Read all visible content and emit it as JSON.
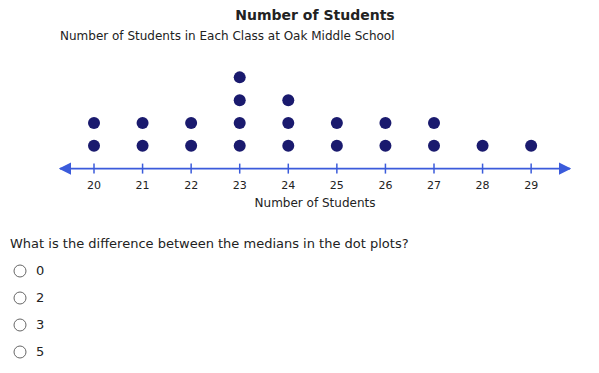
{
  "chart_data": {
    "type": "dot",
    "title": "Number of Students",
    "subtitle": "Number of Students in Each Class at Oak Middle School",
    "x_label": "Number of Students",
    "x": [
      20,
      21,
      22,
      23,
      24,
      25,
      26,
      27,
      28,
      29
    ],
    "values": [
      2,
      2,
      2,
      4,
      3,
      2,
      2,
      2,
      1,
      1
    ],
    "color": "#1a1a6e",
    "xlim": [
      19.3,
      29.8
    ],
    "xticks": [
      20,
      21,
      22,
      23,
      24,
      25,
      26,
      27,
      28,
      29
    ],
    "ylim": [
      -0.5,
      5.2
    ],
    "tick_labels": "x",
    "grid": false,
    "annotations": [
      "What is the difference between the medians in the dot plots?",
      "0",
      "2",
      "3",
      "5"
    ]
  }
}
